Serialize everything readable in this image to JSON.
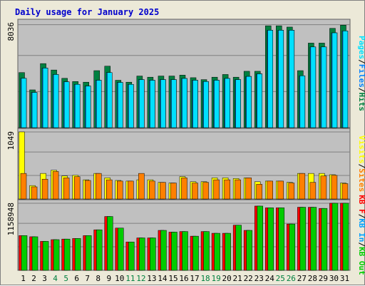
{
  "title": "Daily usage for January 2025",
  "chart_data": [
    {
      "type": "bar",
      "panel": "top",
      "ymax_label": "8036",
      "ylim": [
        0,
        8036
      ],
      "legend": [
        "Pages",
        "Files",
        "Hits"
      ],
      "categories": [
        "1",
        "2",
        "3",
        "4",
        "5",
        "6",
        "7",
        "8",
        "9",
        "10",
        "11",
        "12",
        "13",
        "14",
        "15",
        "16",
        "17",
        "18",
        "19",
        "20",
        "21",
        "22",
        "23",
        "24",
        "25",
        "26",
        "27",
        "28",
        "29",
        "30",
        "31"
      ],
      "series": [
        {
          "name": "Hits",
          "color": "#008040",
          "values": [
            4300,
            2950,
            5000,
            4500,
            3850,
            3600,
            3550,
            4450,
            4800,
            3700,
            3550,
            4030,
            3940,
            4030,
            4030,
            4100,
            3900,
            3750,
            3940,
            4150,
            3940,
            4400,
            4400,
            7950,
            7950,
            7850,
            4450,
            6600,
            6600,
            7750,
            8000
          ]
        },
        {
          "name": "Files",
          "color": "#0080ff",
          "values": [
            3850,
            2750,
            4650,
            4150,
            3580,
            3380,
            3250,
            3700,
            4300,
            3530,
            3380,
            3750,
            3700,
            3750,
            3750,
            3840,
            3700,
            3600,
            3700,
            3840,
            3750,
            4000,
            4200,
            7600,
            7600,
            7600,
            4050,
            6300,
            6300,
            7400,
            7550
          ]
        },
        {
          "name": "Pages",
          "color": "#00e0ff",
          "values": [
            3850,
            2750,
            4650,
            4150,
            3580,
            3380,
            3250,
            3700,
            4300,
            3530,
            3380,
            3750,
            3700,
            3750,
            3750,
            3840,
            3700,
            3600,
            3700,
            3840,
            3750,
            4000,
            4200,
            7600,
            7600,
            7600,
            4050,
            6300,
            6300,
            7400,
            7550
          ]
        }
      ]
    },
    {
      "type": "bar",
      "panel": "middle",
      "ymax_label": "1049",
      "ylim": [
        0,
        1049
      ],
      "legend": [
        "Visits",
        "Sites"
      ],
      "categories": [
        "1",
        "2",
        "3",
        "4",
        "5",
        "6",
        "7",
        "8",
        "9",
        "10",
        "11",
        "12",
        "13",
        "14",
        "15",
        "16",
        "17",
        "18",
        "19",
        "20",
        "21",
        "22",
        "23",
        "24",
        "25",
        "26",
        "27",
        "28",
        "29",
        "30",
        "31"
      ],
      "series": [
        {
          "name": "Visits",
          "color": "#ffff00",
          "values": [
            1049,
            210,
            400,
            450,
            360,
            370,
            300,
            400,
            330,
            290,
            280,
            300,
            300,
            260,
            250,
            350,
            270,
            270,
            330,
            330,
            320,
            330,
            270,
            280,
            280,
            260,
            400,
            400,
            400,
            380,
            250
          ]
        },
        {
          "name": "Sites",
          "color": "#ff8000",
          "values": [
            400,
            190,
            310,
            430,
            330,
            350,
            290,
            400,
            300,
            280,
            280,
            400,
            280,
            260,
            250,
            330,
            250,
            260,
            300,
            300,
            300,
            330,
            230,
            280,
            280,
            250,
            400,
            260,
            360,
            370,
            240
          ]
        }
      ]
    },
    {
      "type": "bar",
      "panel": "bottom",
      "ymax_label": "1158948",
      "ylim": [
        0,
        1158948
      ],
      "legend": [
        "KB F",
        "KB In",
        "KB Out"
      ],
      "categories": [
        "1",
        "2",
        "3",
        "4",
        "5",
        "6",
        "7",
        "8",
        "9",
        "10",
        "11",
        "12",
        "13",
        "14",
        "15",
        "16",
        "17",
        "18",
        "19",
        "20",
        "21",
        "22",
        "23",
        "24",
        "25",
        "26",
        "27",
        "28",
        "29",
        "30",
        "31"
      ],
      "series": [
        {
          "name": "KB F",
          "color": "#ff0000",
          "values": [
            600000,
            580000,
            500000,
            530000,
            540000,
            550000,
            600000,
            700000,
            930000,
            730000,
            490000,
            560000,
            560000,
            690000,
            660000,
            670000,
            590000,
            670000,
            640000,
            640000,
            780000,
            690000,
            1110000,
            1080000,
            1080000,
            800000,
            1090000,
            1090000,
            1070000,
            1158948,
            1158948
          ]
        },
        {
          "name": "KB In",
          "color": "#00a0ff",
          "values": [
            0,
            0,
            0,
            0,
            0,
            0,
            0,
            0,
            0,
            0,
            0,
            0,
            0,
            0,
            0,
            0,
            0,
            0,
            0,
            0,
            0,
            0,
            0,
            0,
            0,
            0,
            0,
            0,
            0,
            0,
            0
          ]
        },
        {
          "name": "KB Out",
          "color": "#00cc00",
          "values": [
            600000,
            580000,
            500000,
            530000,
            540000,
            550000,
            600000,
            700000,
            930000,
            730000,
            490000,
            560000,
            560000,
            690000,
            660000,
            670000,
            590000,
            670000,
            640000,
            640000,
            780000,
            690000,
            1110000,
            1080000,
            1080000,
            800000,
            1090000,
            1090000,
            1070000,
            1158948,
            1158948
          ]
        }
      ]
    }
  ],
  "x_labels": [
    {
      "day": "1",
      "weekend": false
    },
    {
      "day": "2",
      "weekend": false
    },
    {
      "day": "3",
      "weekend": false
    },
    {
      "day": "4",
      "weekend": true
    },
    {
      "day": "5",
      "weekend": true
    },
    {
      "day": "6",
      "weekend": false
    },
    {
      "day": "7",
      "weekend": false
    },
    {
      "day": "8",
      "weekend": false
    },
    {
      "day": "9",
      "weekend": false
    },
    {
      "day": "10",
      "weekend": false
    },
    {
      "day": "11",
      "weekend": true
    },
    {
      "day": "12",
      "weekend": true
    },
    {
      "day": "13",
      "weekend": false
    },
    {
      "day": "14",
      "weekend": false
    },
    {
      "day": "15",
      "weekend": false
    },
    {
      "day": "16",
      "weekend": false
    },
    {
      "day": "17",
      "weekend": false
    },
    {
      "day": "18",
      "weekend": true
    },
    {
      "day": "19",
      "weekend": true
    },
    {
      "day": "20",
      "weekend": false
    },
    {
      "day": "21",
      "weekend": false
    },
    {
      "day": "22",
      "weekend": false
    },
    {
      "day": "23",
      "weekend": false
    },
    {
      "day": "24",
      "weekend": false
    },
    {
      "day": "25",
      "weekend": true
    },
    {
      "day": "26",
      "weekend": true
    },
    {
      "day": "27",
      "weekend": false
    },
    {
      "day": "28",
      "weekend": false
    },
    {
      "day": "29",
      "weekend": false
    },
    {
      "day": "30",
      "weekend": false
    },
    {
      "day": "31",
      "weekend": false
    }
  ],
  "colors": {
    "background": "#ece9d8",
    "plot_bg": "#c0c0c0",
    "title": "#0000cc",
    "weekday_label": "#000000",
    "weekend_label": "#008040",
    "gridline": "#808080",
    "separator": "#606060"
  }
}
